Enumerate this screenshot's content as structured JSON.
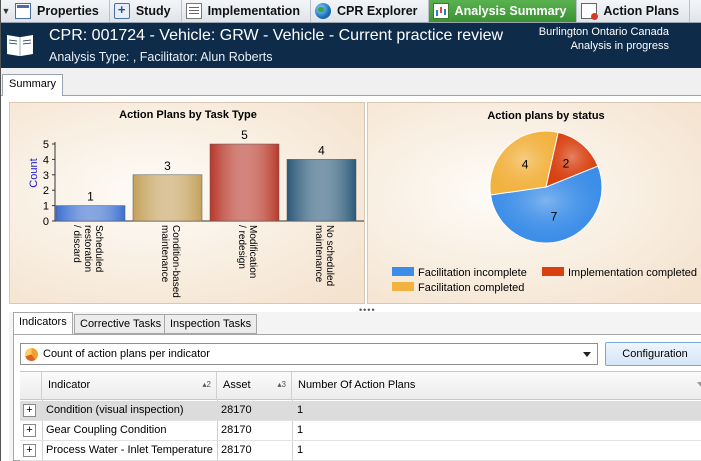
{
  "top_tabs": [
    {
      "label": "Properties",
      "icon": "properties-icon",
      "active": false
    },
    {
      "label": "Study",
      "icon": "study-icon",
      "active": false
    },
    {
      "label": "Implementation",
      "icon": "implementation-icon",
      "active": false
    },
    {
      "label": "CPR Explorer",
      "icon": "globe-icon",
      "active": false
    },
    {
      "label": "Analysis Summary",
      "icon": "analysis-icon",
      "active": true
    },
    {
      "label": "Action Plans",
      "icon": "action-plans-icon",
      "active": false
    }
  ],
  "header": {
    "title": "CPR: 001724 - Vehicle: GRW - Vehicle - Current practice review",
    "subtitle": "Analysis Type: , Facilitator: Alun Roberts",
    "location": "Burlington Ontario Canada",
    "status": "Analysis in progress",
    "background_color": "#0e2c4a"
  },
  "summary_tab": {
    "label": "Summary"
  },
  "chart_data": [
    {
      "type": "bar",
      "title": "Action Plans by Task Type",
      "ylabel": "Count",
      "xlabel": "",
      "categories": [
        "Scheduled restoration / discard",
        "Condition-based maintenance",
        "Modification / redesign",
        "No scheduled maintenance"
      ],
      "category_lines": [
        [
          "Scheduled",
          "restoration",
          "/ discard"
        ],
        [
          "Condition-based",
          "maintenance"
        ],
        [
          "Modification",
          "/ redesign"
        ],
        [
          "No scheduled",
          "maintenance"
        ]
      ],
      "values": [
        1,
        3,
        5,
        4
      ],
      "ylim": [
        0,
        5
      ],
      "yticks": [
        "0",
        "1",
        "2",
        "3",
        "4",
        "5"
      ],
      "colors": [
        "#3c6fd0",
        "#c4a05a",
        "#b8382a",
        "#2a5878"
      ],
      "data_labels": [
        "1",
        "3",
        "5",
        "4"
      ]
    },
    {
      "type": "pie",
      "title": "Action plans by status",
      "slices": [
        {
          "name": "Facilitation incomplete",
          "value": 7,
          "label": "7",
          "color": "#3b8de8"
        },
        {
          "name": "Facilitation completed",
          "value": 4,
          "label": "4",
          "color": "#f2b240"
        },
        {
          "name": "Implementation completed",
          "value": 2,
          "label": "2",
          "color": "#d84010"
        }
      ],
      "legend": [
        {
          "name": "Facilitation incomplete",
          "color": "#3b8de8"
        },
        {
          "name": "Implementation completed",
          "color": "#d84010"
        },
        {
          "name": "Facilitation completed",
          "color": "#f2b240"
        }
      ],
      "legend_position": "bottom"
    }
  ],
  "lower_tabs": [
    {
      "label": "Indicators",
      "active": true
    },
    {
      "label": "Corrective Tasks",
      "active": false
    },
    {
      "label": "Inspection Tasks",
      "active": false
    }
  ],
  "indicator_select": {
    "value": "Count of action plans per indicator"
  },
  "configuration_button": {
    "label": "Configuration"
  },
  "grid": {
    "columns": [
      {
        "label": "Indicator",
        "sort": "2"
      },
      {
        "label": "Asset",
        "sort": "3"
      },
      {
        "label": "Number Of Action Plans",
        "sort": ""
      }
    ],
    "rows": [
      {
        "indicator": "Condition (visual inspection)",
        "asset": "28170",
        "count": "1",
        "selected": true
      },
      {
        "indicator": "Gear Coupling Condition",
        "asset": "28170",
        "count": "1",
        "selected": false
      },
      {
        "indicator": "Process Water - Inlet Temperature",
        "asset": "28170",
        "count": "1",
        "selected": false
      }
    ]
  }
}
